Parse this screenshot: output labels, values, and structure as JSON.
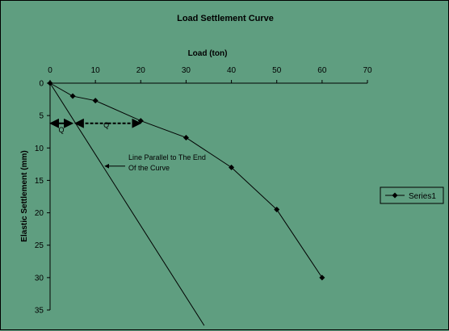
{
  "chart_data": {
    "type": "line",
    "title": "Load Settlement Curve",
    "xlabel": "Load (ton)",
    "ylabel": "Elastic Settlement (mm)",
    "xlim": [
      0,
      70
    ],
    "ylim": [
      0,
      35
    ],
    "x_ticks": [
      0,
      10,
      20,
      30,
      40,
      50,
      60,
      70
    ],
    "y_ticks": [
      0,
      5,
      10,
      15,
      20,
      25,
      30,
      35
    ],
    "x_axis_position": "top",
    "y_axis_inverted": true,
    "grid": false,
    "legend_position": "right",
    "series": [
      {
        "name": "Series1",
        "x": [
          0,
          5,
          10,
          20,
          30,
          40,
          50,
          60
        ],
        "y": [
          0,
          2,
          2.7,
          5.8,
          8.4,
          13,
          19.5,
          30
        ],
        "color": "#000000",
        "marker": "diamond"
      }
    ],
    "reference_line": {
      "x": [
        0,
        34
      ],
      "y": [
        0,
        37.4
      ],
      "color": "#000000"
    },
    "annotations": [
      {
        "lines": [
          "Line Parallel to The End",
          "Of the Curve"
        ],
        "arrow_target": {
          "x": 11.8,
          "y": 12.8
        }
      },
      {
        "label": "Q",
        "arrow_from": 0,
        "arrow_to": 5,
        "at_y": 6.2
      },
      {
        "label": "Q",
        "arrow_from": 5.5,
        "arrow_to": 20,
        "at_y": 6.2
      }
    ]
  }
}
